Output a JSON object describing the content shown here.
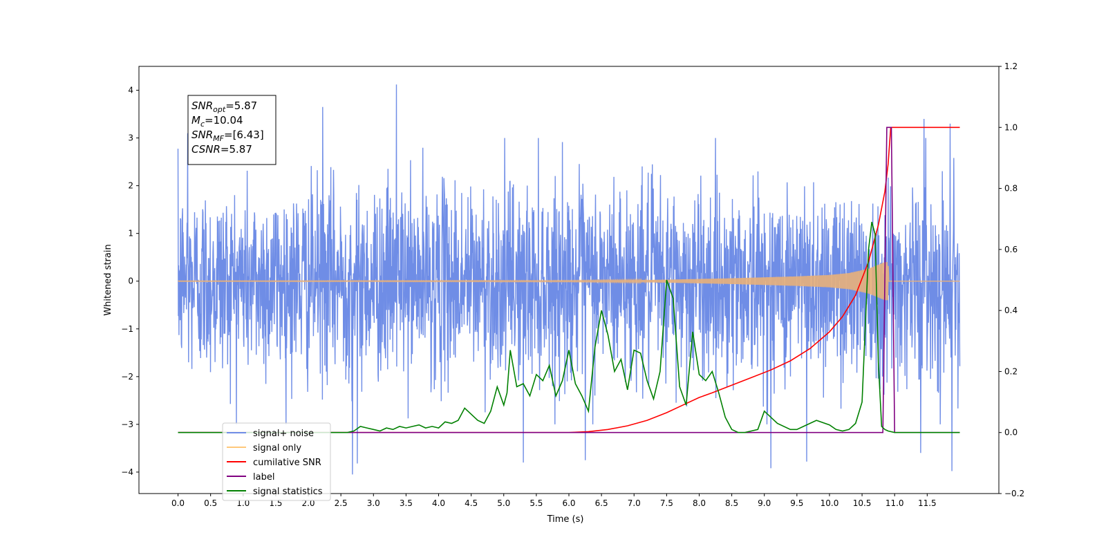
{
  "chart_data": {
    "type": "line",
    "xlabel": "Time (s)",
    "ylabel": "Whitened strain",
    "xlim": [
      -0.6,
      12.6
    ],
    "ylim": [
      -4.45,
      4.5
    ],
    "y2lim": [
      -0.2,
      1.2
    ],
    "x_ticks": [
      0.0,
      0.5,
      1.0,
      1.5,
      2.0,
      2.5,
      3.0,
      3.5,
      4.0,
      4.5,
      5.0,
      5.5,
      6.0,
      6.5,
      7.0,
      7.5,
      8.0,
      8.5,
      9.0,
      9.5,
      10.0,
      10.5,
      11.0,
      11.5
    ],
    "x_tick_labels": [
      "0.0",
      "0.5",
      "1.0",
      "1.5",
      "2.0",
      "2.5",
      "3.0",
      "3.5",
      "4.0",
      "4.5",
      "5.0",
      "5.5",
      "6.0",
      "6.5",
      "7.0",
      "7.5",
      "8.0",
      "8.5",
      "9.0",
      "9.5",
      "10.0",
      "10.5",
      "11.0",
      "11.5"
    ],
    "y_ticks": [
      -4,
      -3,
      -2,
      -1,
      0,
      1,
      2,
      3,
      4
    ],
    "y_tick_labels": [
      "−4",
      "−3",
      "−2",
      "−1",
      "0",
      "1",
      "2",
      "3",
      "4"
    ],
    "y2_ticks": [
      -0.2,
      0.0,
      0.2,
      0.4,
      0.6,
      0.8,
      1.0,
      1.2
    ],
    "y2_tick_labels": [
      "−0.2",
      "0.0",
      "0.2",
      "0.4",
      "0.6",
      "0.8",
      "1.0",
      "1.2"
    ],
    "noise": {
      "t_start": 0.0,
      "t_end": 12.0,
      "sigma": 1.0,
      "color": "#6f8de6",
      "extreme_spikes": [
        {
          "t": 3.35,
          "y": 4.12
        },
        {
          "t": 2.22,
          "y": 3.65
        },
        {
          "t": 11.45,
          "y": 3.4
        },
        {
          "t": 11.85,
          "y": 3.3
        },
        {
          "t": 0.15,
          "y": 3.1
        },
        {
          "t": 2.68,
          "y": -4.05
        },
        {
          "t": 2.75,
          "y": -3.82
        },
        {
          "t": 11.88,
          "y": -3.98
        },
        {
          "t": 9.1,
          "y": -3.92
        },
        {
          "t": 6.25,
          "y": -3.75
        },
        {
          "t": 5.3,
          "y": -3.8
        },
        {
          "t": 9.65,
          "y": -3.78
        },
        {
          "t": 11.4,
          "y": -3.6
        }
      ]
    },
    "signal": {
      "color": "#e8b07a",
      "envelope_t": [
        0,
        6,
        7,
        7.5,
        8,
        8.5,
        9,
        9.5,
        10,
        10.3,
        10.6,
        10.85,
        10.9,
        10.91,
        12
      ],
      "envelope_amp": [
        0.005,
        0.01,
        0.02,
        0.03,
        0.045,
        0.06,
        0.08,
        0.1,
        0.13,
        0.17,
        0.26,
        0.4,
        0.4,
        0.0,
        0.0
      ]
    },
    "series": [
      {
        "name": "cumilative SNR",
        "color": "#ff0000",
        "axis": "right",
        "x": [
          0,
          6.0,
          6.3,
          6.6,
          6.9,
          7.2,
          7.5,
          7.8,
          8.0,
          8.2,
          8.5,
          8.8,
          9.1,
          9.4,
          9.7,
          10.0,
          10.2,
          10.4,
          10.6,
          10.75,
          10.85,
          10.9,
          10.94,
          11.0,
          12.0
        ],
        "y": [
          0,
          0.0,
          0.003,
          0.01,
          0.022,
          0.04,
          0.065,
          0.095,
          0.115,
          0.13,
          0.155,
          0.18,
          0.205,
          0.235,
          0.275,
          0.33,
          0.38,
          0.45,
          0.56,
          0.68,
          0.79,
          0.88,
          1.0,
          1.0,
          1.0
        ]
      },
      {
        "name": "label",
        "color": "#800080",
        "axis": "right",
        "x": [
          0,
          10.82,
          10.88,
          10.95,
          11.0,
          12.0
        ],
        "y": [
          0,
          0,
          1.0,
          1.0,
          0,
          0
        ]
      },
      {
        "name": "signal statistics",
        "color": "#008000",
        "axis": "right",
        "x": [
          0,
          2.6,
          2.7,
          2.8,
          2.9,
          3.0,
          3.1,
          3.2,
          3.3,
          3.4,
          3.5,
          3.6,
          3.7,
          3.8,
          3.9,
          4.0,
          4.1,
          4.2,
          4.3,
          4.4,
          4.5,
          4.6,
          4.7,
          4.8,
          4.9,
          5.0,
          5.05,
          5.1,
          5.2,
          5.3,
          5.4,
          5.5,
          5.6,
          5.7,
          5.8,
          5.9,
          6.0,
          6.1,
          6.2,
          6.3,
          6.4,
          6.5,
          6.6,
          6.7,
          6.8,
          6.9,
          7.0,
          7.1,
          7.2,
          7.3,
          7.4,
          7.5,
          7.6,
          7.7,
          7.8,
          7.9,
          8.0,
          8.1,
          8.2,
          8.3,
          8.4,
          8.5,
          8.6,
          8.7,
          8.8,
          8.9,
          9.0,
          9.2,
          9.4,
          9.5,
          9.6,
          9.8,
          10.0,
          10.1,
          10.2,
          10.3,
          10.4,
          10.5,
          10.6,
          10.65,
          10.7,
          10.75,
          10.8,
          10.85,
          10.9,
          11.0,
          11.2,
          11.5,
          12.0
        ],
        "y": [
          0,
          0.0,
          0.005,
          0.02,
          0.015,
          0.01,
          0.005,
          0.015,
          0.01,
          0.02,
          0.015,
          0.02,
          0.025,
          0.015,
          0.02,
          0.015,
          0.035,
          0.03,
          0.04,
          0.08,
          0.06,
          0.04,
          0.03,
          0.07,
          0.15,
          0.09,
          0.13,
          0.27,
          0.15,
          0.16,
          0.12,
          0.19,
          0.17,
          0.22,
          0.12,
          0.17,
          0.27,
          0.16,
          0.12,
          0.07,
          0.28,
          0.4,
          0.32,
          0.2,
          0.24,
          0.14,
          0.27,
          0.26,
          0.17,
          0.11,
          0.2,
          0.5,
          0.44,
          0.15,
          0.09,
          0.33,
          0.19,
          0.17,
          0.2,
          0.13,
          0.05,
          0.01,
          0.0,
          0.0,
          0.005,
          0.01,
          0.07,
          0.03,
          0.01,
          0.01,
          0.02,
          0.04,
          0.025,
          0.01,
          0.005,
          0.01,
          0.03,
          0.1,
          0.6,
          0.69,
          0.65,
          0.23,
          0.02,
          0.01,
          0.005,
          0.0,
          0.0,
          0.0,
          0.0
        ]
      }
    ],
    "legend": {
      "placement": "lower-left",
      "entries": [
        {
          "label": "signal+ noise",
          "color": "#6f8de6"
        },
        {
          "label": "signal only",
          "color": "#ffc87a"
        },
        {
          "label": "cumilative SNR",
          "color": "#ff0000"
        },
        {
          "label": "label",
          "color": "#800080"
        },
        {
          "label": "signal statistics",
          "color": "#008000"
        }
      ]
    },
    "annotation": {
      "lines": [
        {
          "name": "SNR",
          "sub": "opt",
          "value": "=5.87"
        },
        {
          "name": "M",
          "sub": "c",
          "value": "=10.04"
        },
        {
          "name": "SNR",
          "sub": "MF",
          "value": "=[6.43]"
        },
        {
          "name": "CSNR",
          "sub": "",
          "value": "=5.87"
        }
      ]
    }
  }
}
